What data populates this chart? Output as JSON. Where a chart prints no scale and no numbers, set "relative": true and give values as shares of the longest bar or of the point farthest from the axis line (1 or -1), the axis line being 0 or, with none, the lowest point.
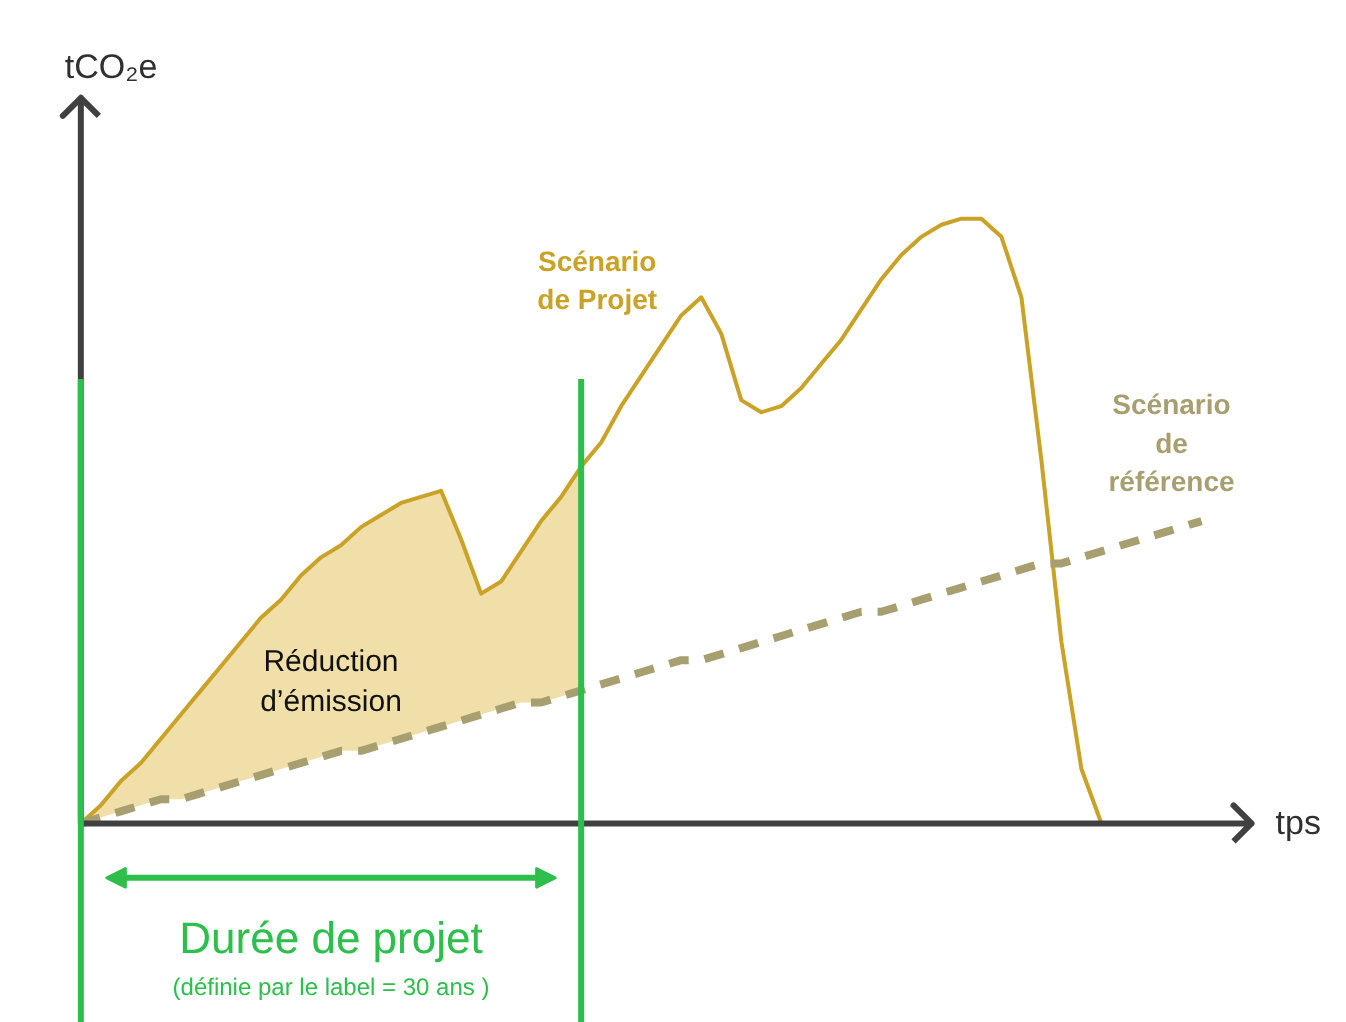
{
  "chart_data": {
    "type": "line",
    "relative": true,
    "ylabel": "tCO₂e",
    "xlabel": "tps",
    "legend": false,
    "grid": false,
    "categories": [
      null,
      null,
      null,
      null,
      null,
      null,
      null,
      null,
      null,
      null,
      null,
      null,
      null,
      null,
      null,
      null,
      null,
      null,
      null,
      null,
      null,
      null,
      null,
      null,
      null,
      null,
      null,
      null,
      null,
      null,
      null,
      null,
      null,
      null,
      null,
      null,
      null,
      null,
      null,
      null,
      null,
      null,
      null,
      null,
      null,
      null,
      null,
      null,
      null,
      null,
      null,
      null,
      null,
      null,
      null,
      null,
      null
    ],
    "series": [
      {
        "name": "Scénario\nde Projet",
        "color": "#c9a227",
        "line_style": "solid",
        "values": [
          0,
          0.03,
          0.07,
          0.1,
          0.14,
          0.18,
          0.22,
          0.26,
          0.3,
          0.34,
          0.37,
          0.41,
          0.44,
          0.46,
          0.49,
          0.51,
          0.53,
          0.54,
          0.55,
          0.47,
          0.38,
          0.4,
          0.45,
          0.5,
          0.54,
          0.59,
          0.63,
          0.69,
          0.74,
          0.79,
          0.84,
          0.87,
          0.81,
          0.7,
          0.68,
          0.69,
          0.72,
          0.76,
          0.8,
          0.85,
          0.9,
          0.94,
          0.97,
          0.99,
          1,
          1,
          0.97,
          0.87,
          0.6,
          0.3,
          0.09,
          0,
          null,
          null,
          null,
          null,
          null
        ],
        "lower": [
          0,
          0.01,
          0.02,
          0.03,
          0.04,
          0.04,
          0.05,
          0.06,
          0.07,
          0.08,
          0.09,
          0.1,
          0.11,
          0.12,
          0.12,
          0.13,
          0.14,
          0.15,
          0.16,
          0.17,
          0.18,
          0.19,
          0.2,
          0.2,
          0.21,
          0.22,
          null,
          null,
          null,
          null,
          null,
          null,
          null,
          null,
          null,
          null,
          null,
          null,
          null,
          null,
          null,
          null,
          null,
          null,
          null,
          null,
          null,
          null,
          null,
          null,
          null,
          null,
          null,
          null,
          null,
          null,
          null
        ],
        "upper": [
          0,
          0.03,
          0.07,
          0.1,
          0.14,
          0.18,
          0.22,
          0.26,
          0.3,
          0.34,
          0.37,
          0.41,
          0.44,
          0.46,
          0.49,
          0.51,
          0.53,
          0.54,
          0.55,
          0.47,
          0.38,
          0.4,
          0.45,
          0.5,
          0.54,
          0.59,
          null,
          null,
          null,
          null,
          null,
          null,
          null,
          null,
          null,
          null,
          null,
          null,
          null,
          null,
          null,
          null,
          null,
          null,
          null,
          null,
          null,
          null,
          null,
          null,
          null,
          null,
          null,
          null,
          null,
          null,
          null
        ]
      },
      {
        "name": "Scénario\nde\nréférence",
        "color": "#a89f70",
        "line_style": "dashed",
        "values": [
          0,
          0.01,
          0.02,
          0.03,
          0.04,
          0.04,
          0.05,
          0.06,
          0.07,
          0.08,
          0.09,
          0.1,
          0.11,
          0.12,
          0.12,
          0.13,
          0.14,
          0.15,
          0.16,
          0.17,
          0.18,
          0.19,
          0.2,
          0.2,
          0.21,
          0.22,
          0.23,
          0.24,
          0.25,
          0.26,
          0.27,
          0.27,
          0.28,
          0.29,
          0.3,
          0.31,
          0.32,
          0.33,
          0.34,
          0.35,
          0.35,
          0.36,
          0.37,
          0.38,
          0.39,
          0.4,
          0.41,
          0.42,
          0.43,
          0.43,
          0.44,
          0.45,
          0.46,
          0.47,
          0.48,
          0.49,
          0.5
        ]
      }
    ],
    "annotations": [
      "Réduction\nd’émission",
      "Durée de projet",
      "(définie par le label = 30 ans )"
    ]
  }
}
